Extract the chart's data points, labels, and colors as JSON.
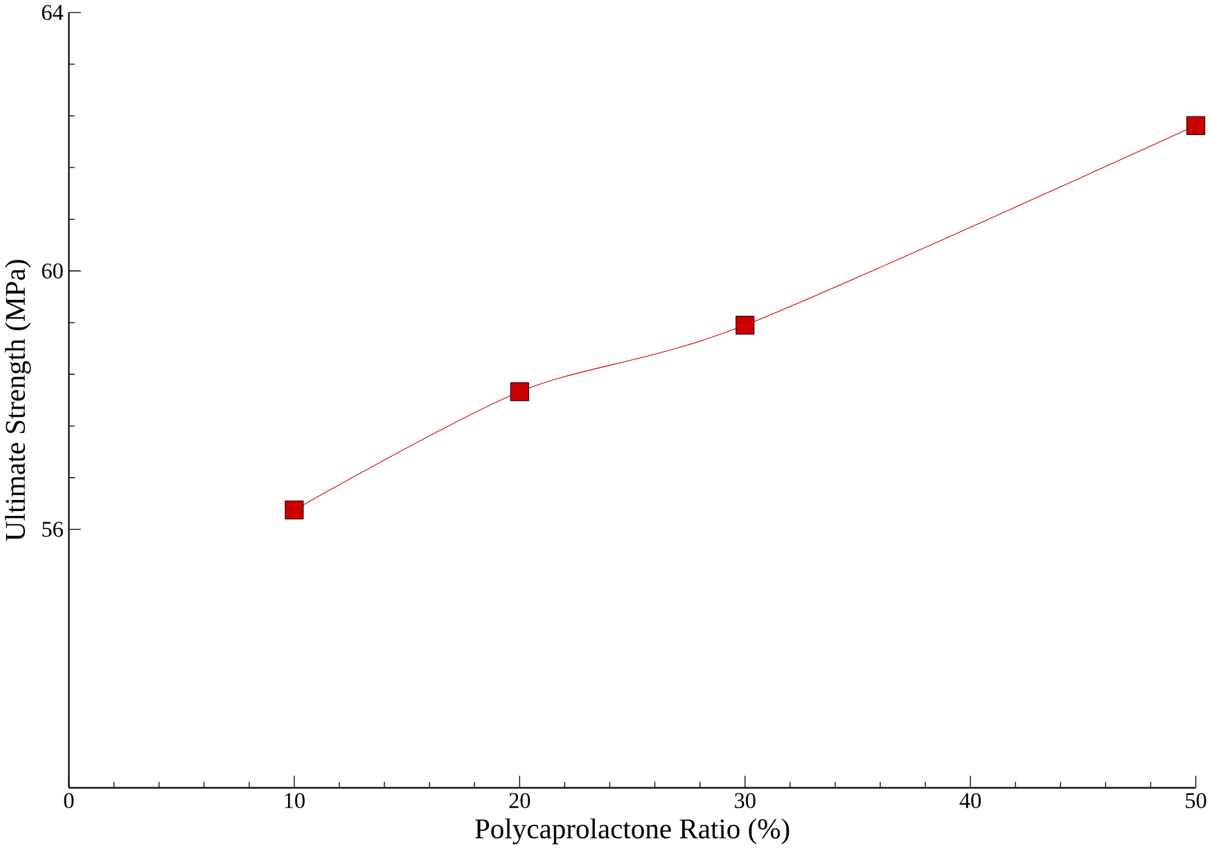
{
  "chart_data": {
    "type": "line",
    "xlabel": "Polycaprolactone Ratio (%)",
    "ylabel": "Ultimate Strength (MPa)",
    "x": [
      10,
      20,
      30,
      50
    ],
    "series": [
      {
        "color": "#cc0000",
        "values": [
          56.3,
          58.13,
          59.16,
          62.25
        ]
      }
    ],
    "xlim": [
      0,
      50
    ],
    "ylim": [
      52,
      64
    ],
    "xticks": [
      0,
      10,
      20,
      30,
      40,
      50
    ],
    "yticks": [
      56,
      60,
      64
    ],
    "marker": "square",
    "line_style": "solid"
  }
}
